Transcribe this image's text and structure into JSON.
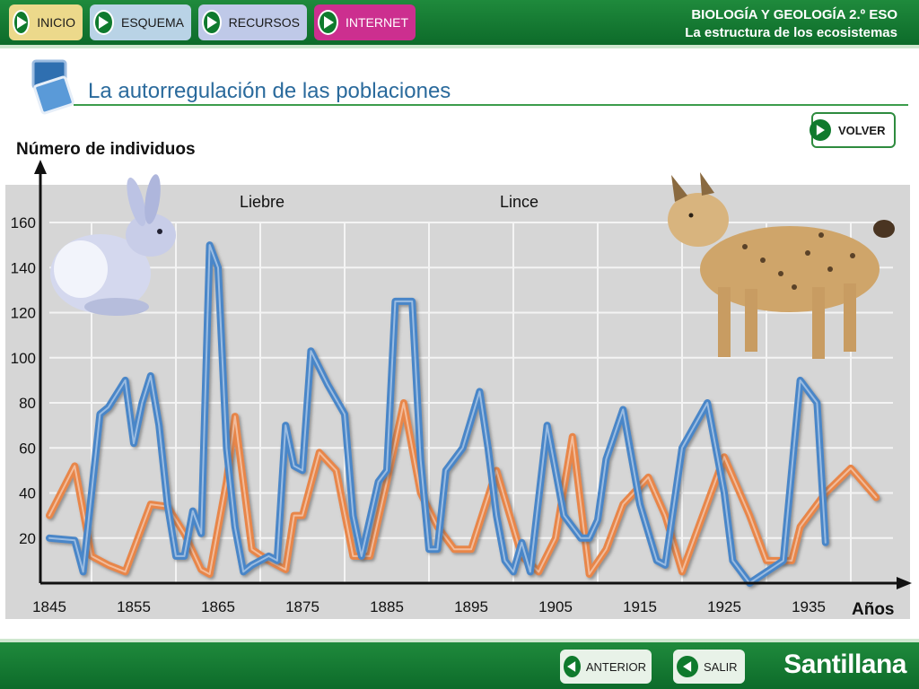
{
  "nav": {
    "inicio": "INICIO",
    "esquema": "ESQUEMA",
    "recursos": "RECURSOS",
    "internet": "INTERNET"
  },
  "header": {
    "subject": "BIOLOGÍA Y GEOLOGÍA 2.º ESO",
    "unit": "La estructura de los ecosistemas"
  },
  "page": {
    "title": "La autorregulación de las poblaciones",
    "volver": "VOLVER"
  },
  "footer": {
    "anterior": "ANTERIOR",
    "salir": "SALIR",
    "brand": "Santillana"
  },
  "colors": {
    "liebre": "#e8864a",
    "lince": "#4a86c8",
    "panel": "#d6d6d6",
    "header_green": "#0d6b2a",
    "title_blue": "#2a6a9c"
  },
  "chart_data": {
    "type": "line",
    "title": "",
    "ylabel": "Número de individuos",
    "xlabel": "Años",
    "xlim": [
      1845,
      1940
    ],
    "ylim": [
      0,
      160
    ],
    "xticks": [
      "1845",
      "1855",
      "1865",
      "1875",
      "1885",
      "1895",
      "1905",
      "1915",
      "1925",
      "1935"
    ],
    "yticks": [
      "20",
      "40",
      "60",
      "80",
      "100",
      "120",
      "140",
      "160"
    ],
    "grid": true,
    "legend_position": "top",
    "series": [
      {
        "name": "Liebre",
        "color": "#e8864a",
        "points": [
          [
            1845,
            30
          ],
          [
            1848,
            52
          ],
          [
            1850,
            12
          ],
          [
            1852,
            8
          ],
          [
            1854,
            5
          ],
          [
            1857,
            35
          ],
          [
            1859,
            34
          ],
          [
            1861,
            22
          ],
          [
            1863,
            6
          ],
          [
            1864,
            4
          ],
          [
            1866,
            45
          ],
          [
            1867,
            74
          ],
          [
            1869,
            15
          ],
          [
            1871,
            10
          ],
          [
            1873,
            6
          ],
          [
            1874,
            30
          ],
          [
            1875,
            30
          ],
          [
            1877,
            58
          ],
          [
            1879,
            50
          ],
          [
            1881,
            12
          ],
          [
            1883,
            12
          ],
          [
            1885,
            45
          ],
          [
            1887,
            80
          ],
          [
            1889,
            40
          ],
          [
            1891,
            25
          ],
          [
            1893,
            15
          ],
          [
            1895,
            15
          ],
          [
            1898,
            50
          ],
          [
            1901,
            12
          ],
          [
            1903,
            5
          ],
          [
            1905,
            20
          ],
          [
            1907,
            65
          ],
          [
            1909,
            4
          ],
          [
            1911,
            15
          ],
          [
            1913,
            35
          ],
          [
            1916,
            47
          ],
          [
            1918,
            30
          ],
          [
            1920,
            5
          ],
          [
            1925,
            56
          ],
          [
            1928,
            30
          ],
          [
            1930,
            10
          ],
          [
            1933,
            10
          ],
          [
            1934,
            25
          ],
          [
            1937,
            40
          ],
          [
            1940,
            51
          ],
          [
            1943,
            38
          ]
        ]
      },
      {
        "name": "Lince",
        "color": "#4a86c8",
        "points": [
          [
            1845,
            20
          ],
          [
            1848,
            19
          ],
          [
            1849,
            5
          ],
          [
            1851,
            75
          ],
          [
            1852,
            78
          ],
          [
            1854,
            90
          ],
          [
            1855,
            62
          ],
          [
            1856,
            80
          ],
          [
            1857,
            92
          ],
          [
            1858,
            70
          ],
          [
            1859,
            35
          ],
          [
            1860,
            12
          ],
          [
            1861,
            12
          ],
          [
            1862,
            32
          ],
          [
            1863,
            22
          ],
          [
            1864,
            150
          ],
          [
            1865,
            140
          ],
          [
            1866,
            60
          ],
          [
            1867,
            25
          ],
          [
            1868,
            5
          ],
          [
            1869,
            8
          ],
          [
            1871,
            12
          ],
          [
            1872,
            10
          ],
          [
            1873,
            70
          ],
          [
            1874,
            52
          ],
          [
            1875,
            50
          ],
          [
            1876,
            103
          ],
          [
            1878,
            88
          ],
          [
            1880,
            75
          ],
          [
            1881,
            30
          ],
          [
            1882,
            12
          ],
          [
            1884,
            45
          ],
          [
            1885,
            50
          ],
          [
            1886,
            125
          ],
          [
            1888,
            125
          ],
          [
            1889,
            55
          ],
          [
            1890,
            15
          ],
          [
            1891,
            15
          ],
          [
            1892,
            50
          ],
          [
            1894,
            60
          ],
          [
            1896,
            85
          ],
          [
            1897,
            60
          ],
          [
            1898,
            30
          ],
          [
            1899,
            10
          ],
          [
            1900,
            5
          ],
          [
            1901,
            18
          ],
          [
            1902,
            5
          ],
          [
            1904,
            70
          ],
          [
            1906,
            30
          ],
          [
            1907,
            25
          ],
          [
            1908,
            20
          ],
          [
            1909,
            20
          ],
          [
            1910,
            28
          ],
          [
            1911,
            55
          ],
          [
            1913,
            77
          ],
          [
            1915,
            35
          ],
          [
            1917,
            10
          ],
          [
            1918,
            8
          ],
          [
            1920,
            60
          ],
          [
            1923,
            80
          ],
          [
            1925,
            40
          ],
          [
            1926,
            10
          ],
          [
            1928,
            0
          ],
          [
            1930,
            5
          ],
          [
            1932,
            10
          ],
          [
            1934,
            90
          ],
          [
            1936,
            80
          ],
          [
            1937,
            18
          ]
        ]
      }
    ]
  }
}
